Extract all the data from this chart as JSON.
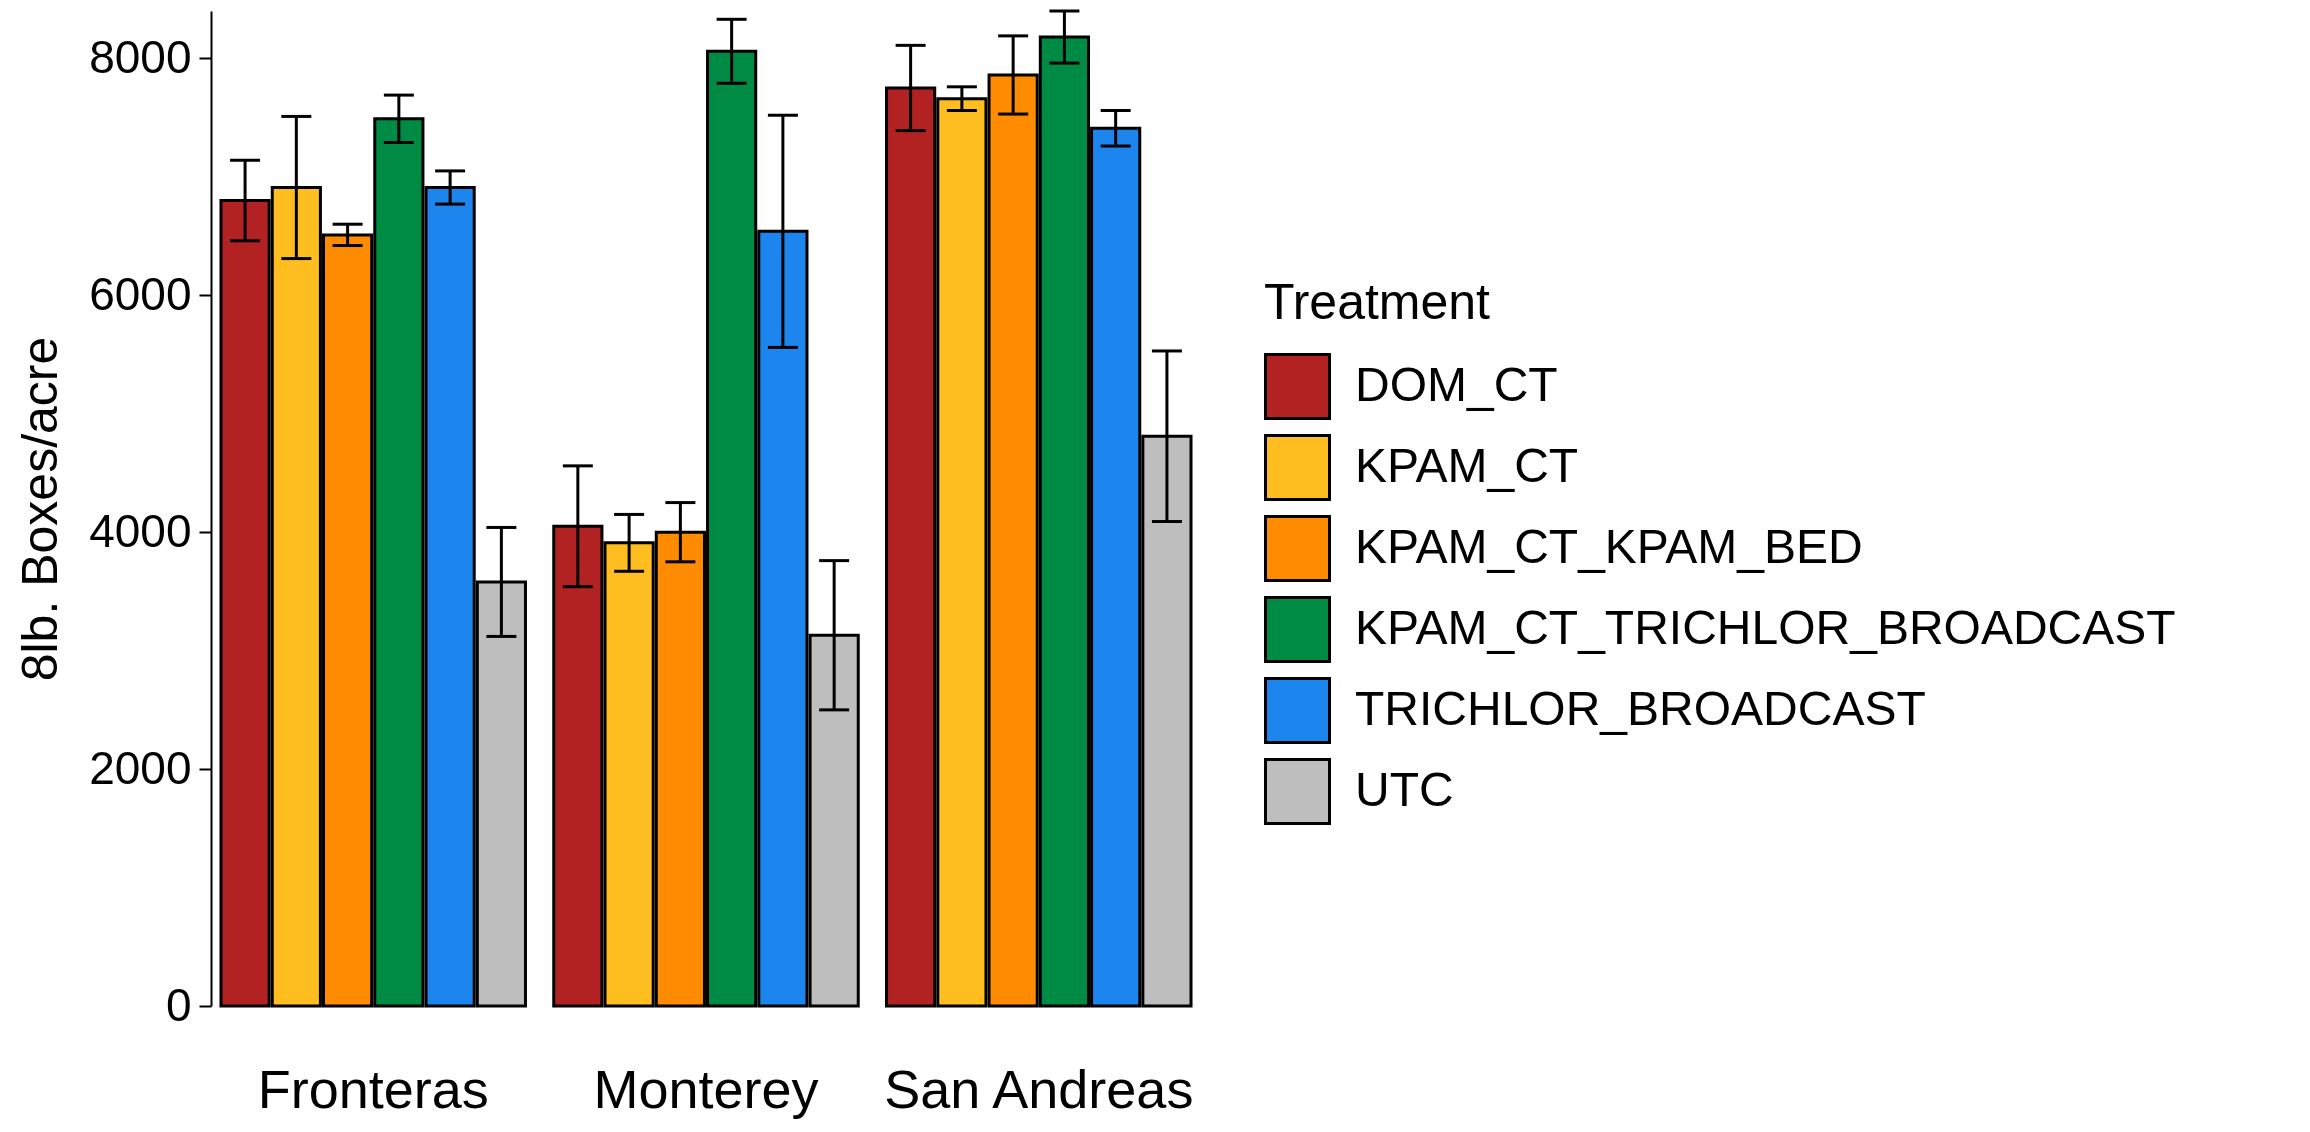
{
  "chart_data": {
    "type": "bar",
    "ylabel": "8lb. Boxes/acre",
    "legend_title": "Treatment",
    "legend": "right",
    "categories": [
      "Fronteras",
      "Monterey",
      "San Andreas"
    ],
    "series": [
      {
        "name": "DOM_CT",
        "color": "#b22222",
        "values": [
          6800,
          4050,
          7750
        ],
        "errors": [
          340,
          510,
          360
        ]
      },
      {
        "name": "KPAM_CT",
        "color": "#ffbe1f",
        "values": [
          6910,
          3910,
          7660
        ],
        "errors": [
          600,
          240,
          100
        ]
      },
      {
        "name": "KPAM_CT_KPAM_BED",
        "color": "#ff8c00",
        "values": [
          6510,
          4000,
          7860
        ],
        "errors": [
          90,
          250,
          330
        ]
      },
      {
        "name": "KPAM_CT_TRICHLOR_BROADCAST",
        "color": "#008b45",
        "values": [
          7490,
          8060,
          8180
        ],
        "errors": [
          200,
          270,
          220
        ]
      },
      {
        "name": "TRICHLOR_BROADCAST",
        "color": "#1c86ee",
        "values": [
          6910,
          6540,
          7410
        ],
        "errors": [
          140,
          980,
          150
        ]
      },
      {
        "name": "UTC",
        "color": "#bebebe",
        "values": [
          3580,
          3130,
          4810
        ],
        "errors": [
          460,
          630,
          720
        ]
      }
    ],
    "ylim": [
      0,
      8400
    ],
    "yticks": [
      0,
      2000,
      4000,
      6000,
      8000
    ]
  }
}
